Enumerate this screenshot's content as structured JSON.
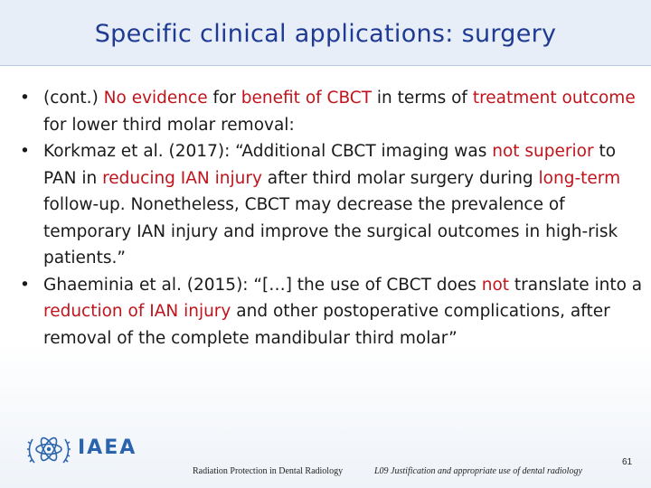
{
  "slide": {
    "title": "Specific clinical applications: surgery"
  },
  "bullets": [
    {
      "segments": [
        {
          "text": "(cont.) ",
          "red": false
        },
        {
          "text": "No evidence",
          "red": true
        },
        {
          "text": " for ",
          "red": false
        },
        {
          "text": "benefit of CBCT",
          "red": true
        },
        {
          "text": " in terms of ",
          "red": false
        },
        {
          "text": "treatment outcome",
          "red": true
        },
        {
          "text": " for lower third molar removal:",
          "red": false
        }
      ]
    },
    {
      "segments": [
        {
          "text": "Korkmaz et al. (2017): “Additional CBCT imaging was ",
          "red": false
        },
        {
          "text": "not superior",
          "red": true
        },
        {
          "text": " to PAN in ",
          "red": false
        },
        {
          "text": "reducing IAN injury",
          "red": true
        },
        {
          "text": " after third molar surgery during ",
          "red": false
        },
        {
          "text": "long-term",
          "red": true
        },
        {
          "text": " follow-up. Nonetheless, CBCT may decrease the prevalence of temporary IAN injury and improve the surgical outcomes in high-risk patients.”",
          "red": false
        }
      ]
    },
    {
      "segments": [
        {
          "text": "Ghaeminia et al. (2015): “[…] the use of CBCT does ",
          "red": false
        },
        {
          "text": "not",
          "red": true
        },
        {
          "text": " translate into a ",
          "red": false
        },
        {
          "text": "reduction of IAN injury",
          "red": true
        },
        {
          "text": " and other postoperative complications, after removal of the complete mandibular third molar”",
          "red": false
        }
      ]
    }
  ],
  "footer": {
    "logo_text": "IAEA",
    "left": "Radiation Protection in Dental Radiology",
    "right": "L09 Justification and appropriate use of dental radiology",
    "page_number": "61"
  },
  "colors": {
    "title": "#1f3a93",
    "emphasis": "#c0141c",
    "logo": "#2b63ad"
  }
}
